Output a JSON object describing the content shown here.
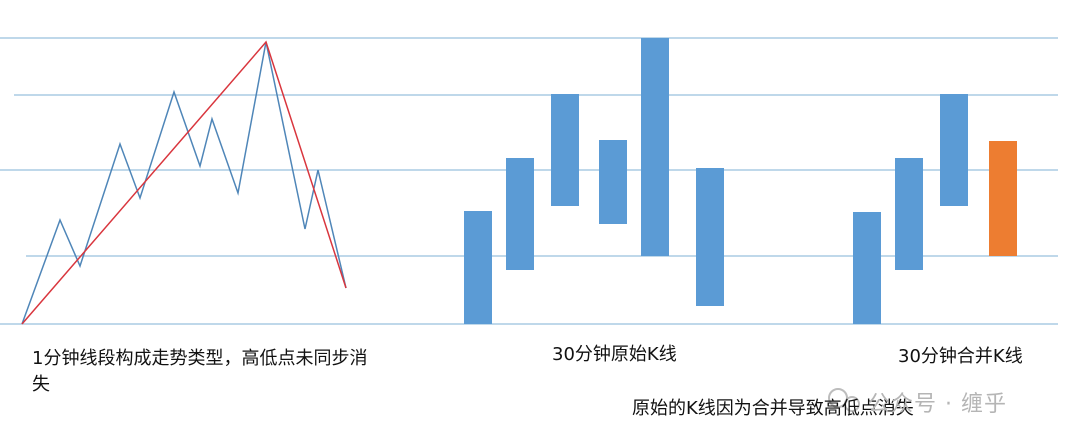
{
  "captions": {
    "one_minute": "1分钟线段构成走势类型，高低点未同步消失",
    "raw_k": "30分钟原始K线",
    "merged_k": "30分钟合并K线",
    "note": "原始的K线因为合并导致高低点消失"
  },
  "watermark": "公众号 · 缠乎"
}
